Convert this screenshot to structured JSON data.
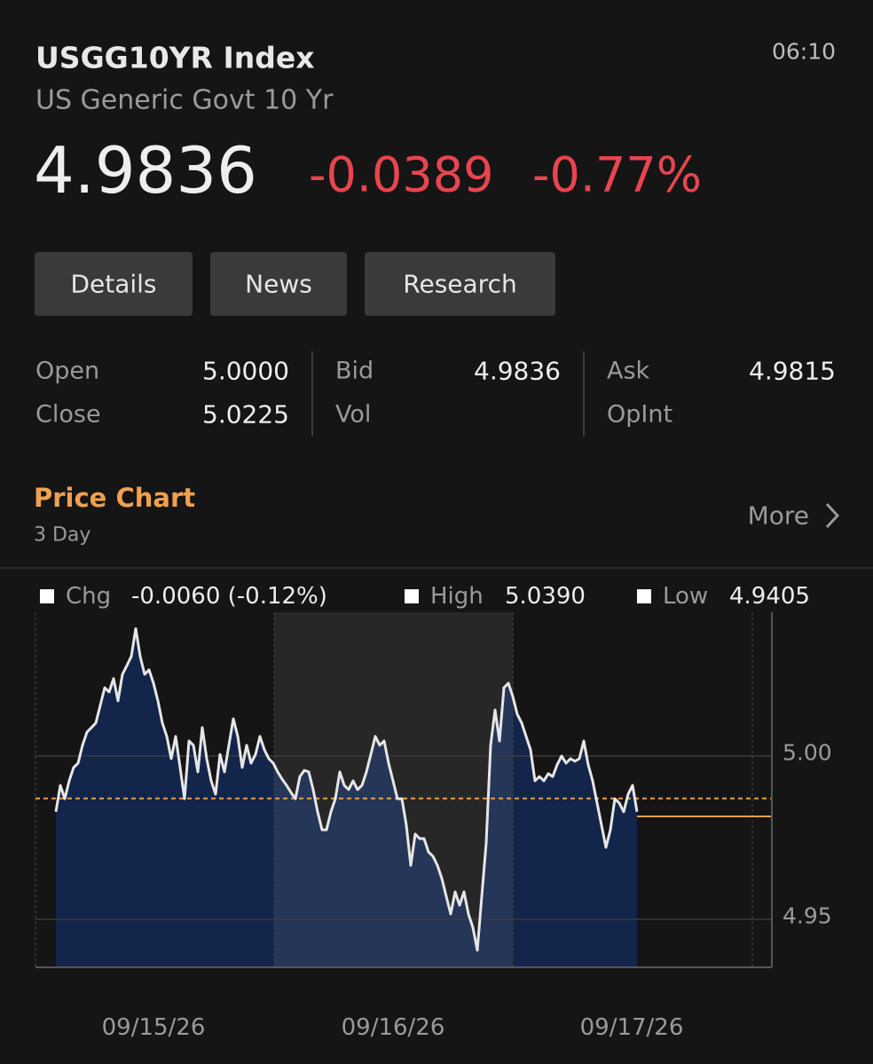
{
  "header": {
    "symbol": "USGG10YR Index",
    "description": "US Generic Govt 10 Yr",
    "time": "06:10",
    "price": "4.9836",
    "change": "-0.0389",
    "change_pct": "-0.77%"
  },
  "tabs": [
    "Details",
    "News",
    "Research"
  ],
  "quote": [
    [
      {
        "label": "Open",
        "value": "5.0000"
      },
      {
        "label": "Close",
        "value": "5.0225"
      }
    ],
    [
      {
        "label": "Bid",
        "value": "4.9836"
      },
      {
        "label": "Vol"
      }
    ],
    [
      {
        "label": "Ask",
        "value": "4.9815"
      },
      {
        "label": "OpInt"
      }
    ]
  ],
  "price_chart": {
    "title": "Price Chart",
    "period": "3 Day",
    "more": "More"
  },
  "chart_data": {
    "type": "line",
    "stats": [
      {
        "name": "Chg",
        "value": "-0.0060 (-0.12%)"
      },
      {
        "name": "High",
        "value": "5.0390"
      },
      {
        "name": "Low",
        "value": "4.9405"
      }
    ],
    "x_labels": [
      "09/15/26",
      "09/16/26",
      "09/17/26"
    ],
    "color": "#e6e6e6",
    "fill": "#13254a",
    "values": [
      4.9829,
      4.991,
      4.9869,
      4.9924,
      4.9965,
      4.9978,
      5.0033,
      5.0073,
      5.0087,
      5.0101,
      5.0155,
      5.0209,
      5.0196,
      5.0237,
      5.0169,
      5.025,
      5.0277,
      5.0305,
      5.039,
      5.0305,
      5.025,
      5.0264,
      5.0223,
      5.0169,
      5.0101,
      5.006,
      4.9992,
      5.006,
      4.9965,
      4.9869,
      5.0046,
      5.0033,
      4.9951,
      5.0087,
      4.9992,
      4.9924,
      4.9883,
      5.0005,
      4.9951,
      5.0033,
      5.0114,
      5.006,
      4.9965,
      5.0033,
      4.9978,
      5.0005,
      5.006,
      5.0019,
      4.9992,
      4.9978,
      4.9951,
      4.9929,
      4.991,
      4.9888,
      4.9869,
      4.9937,
      4.9956,
      4.9951,
      4.9897,
      4.9829,
      4.9774,
      4.9774,
      4.9829,
      4.9869,
      4.9951,
      4.991,
      4.9897,
      4.9924,
      4.9897,
      4.991,
      4.9951,
      5.0005,
      5.006,
      5.0033,
      5.0046,
      4.9978,
      4.9924,
      4.9869,
      4.9869,
      4.9788,
      4.9665,
      4.9761,
      4.9747,
      4.9747,
      4.9706,
      4.9693,
      4.9665,
      4.9625,
      4.957,
      4.9516,
      4.9584,
      4.9543,
      4.9584,
      4.9516,
      4.9475,
      4.9405,
      4.957,
      4.9733,
      5.0033,
      5.0141,
      5.0046,
      5.0209,
      5.0223,
      5.0182,
      5.0128,
      5.0101,
      5.006,
      5.0019,
      4.9924,
      4.9937,
      4.9924,
      4.9946,
      4.9937,
      4.9973,
      5.0,
      4.9978,
      4.9992,
      4.9984,
      4.9992,
      5.0046,
      4.9973,
      4.9924,
      4.9856,
      4.9788,
      4.972,
      4.9774,
      4.9869,
      4.9856,
      4.9829,
      4.9883,
      4.991,
      4.9829
    ],
    "ylim": [
      4.9353,
      5.044
    ],
    "yticks": [
      {
        "value": 5.0,
        "label": "5.00"
      },
      {
        "value": 4.95,
        "label": "4.95"
      }
    ],
    "reference_lines": [
      {
        "value": 4.987,
        "style": "dashed",
        "color": "#e8a04a"
      },
      {
        "value": 4.9815,
        "style": "solid",
        "color": "#e8a04a"
      }
    ],
    "grid": true
  }
}
